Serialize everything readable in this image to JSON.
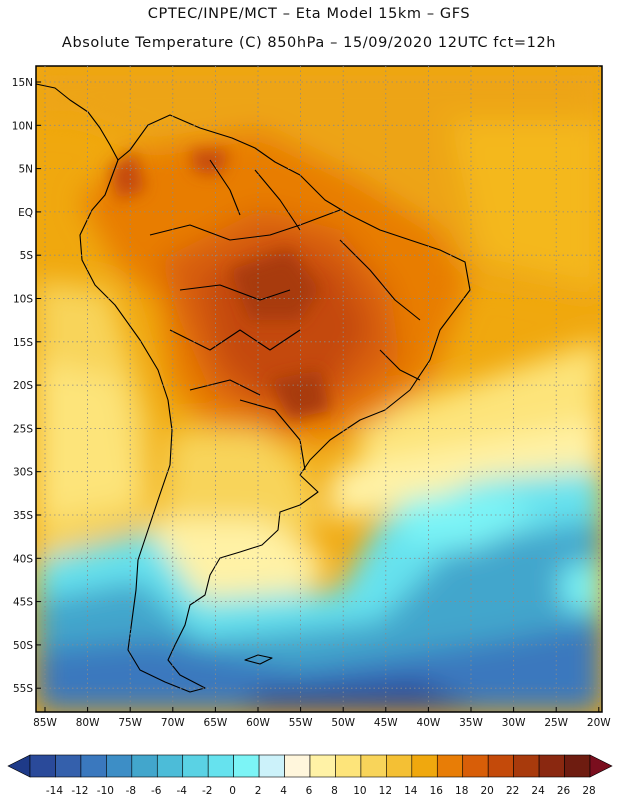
{
  "header": {
    "line1": "CPTEC/INPE/MCT –  Eta Model 15km – GFS",
    "line2": "Absolute Temperature (C) 850hPa – 15/09/2020 12UTC fct=12h"
  },
  "axes": {
    "lat_labels": [
      "15N",
      "10N",
      "5N",
      "EQ",
      "5S",
      "10S",
      "15S",
      "20S",
      "25S",
      "30S",
      "35S",
      "40S",
      "45S",
      "50S",
      "55S"
    ],
    "lon_labels": [
      "85W",
      "80W",
      "75W",
      "70W",
      "65W",
      "60W",
      "55W",
      "50W",
      "45W",
      "40W",
      "35W",
      "30W",
      "25W",
      "20W"
    ]
  },
  "colorbar": {
    "labels": [
      "-14",
      "-12",
      "-10",
      "-8",
      "-6",
      "-4",
      "-2",
      "0",
      "2",
      "4",
      "6",
      "8",
      "10",
      "12",
      "14",
      "16",
      "18",
      "20",
      "22",
      "24",
      "26",
      "28"
    ],
    "colors": [
      "#2a4a9a",
      "#3460ac",
      "#3a78be",
      "#3d8ec6",
      "#42a6cc",
      "#4cbcd8",
      "#5ad2e4",
      "#66e2ee",
      "#7cf4f6",
      "#ccf2fa",
      "#fff6dc",
      "#fff2a6",
      "#fde47a",
      "#f8d45a",
      "#f4c034",
      "#f0a80e",
      "#e87d06",
      "#d85e08",
      "#c44a0a",
      "#a83a0c",
      "#8a2810",
      "#6e1c10"
    ],
    "under_color": "#1e3a88",
    "over_color": "#7a0e1e"
  }
}
